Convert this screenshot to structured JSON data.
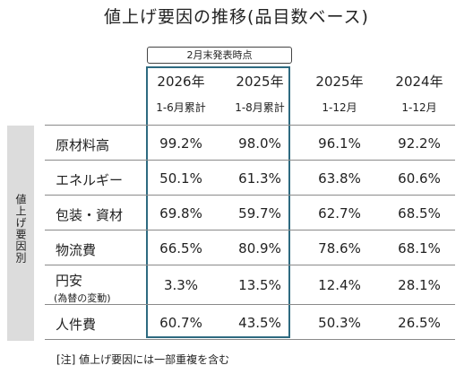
{
  "title": "値上げ要因の推移(品目数ベース)",
  "tag": "2月末発表時点",
  "columns": [
    {
      "year": "2026年",
      "period": "1-6月累計"
    },
    {
      "year": "2025年",
      "period": "1-8月累計"
    },
    {
      "year": "2025年",
      "period": "1-12月"
    },
    {
      "year": "2024年",
      "period": "1-12月"
    }
  ],
  "side_label": "値上げ要因別",
  "rows": [
    {
      "label": "原材料高",
      "values": [
        "99.2%",
        "98.0%",
        "96.1%",
        "92.2%"
      ]
    },
    {
      "label": "エネルギー",
      "values": [
        "50.1%",
        "61.3%",
        "63.8%",
        "60.6%"
      ]
    },
    {
      "label": "包装・資材",
      "values": [
        "69.8%",
        "59.7%",
        "62.7%",
        "68.5%"
      ]
    },
    {
      "label": "物流費",
      "values": [
        "66.5%",
        "80.9%",
        "78.6%",
        "68.1%"
      ]
    },
    {
      "label": "円安",
      "sublabel": "(為替の変動)",
      "values": [
        "3.3%",
        "13.5%",
        "12.4%",
        "28.1%"
      ]
    },
    {
      "label": "人件費",
      "values": [
        "60.7%",
        "43.5%",
        "50.3%",
        "26.5%"
      ]
    }
  ],
  "note": "[注] 値上げ要因には一部重複を含む",
  "colors": {
    "highlight_border": "#2e6a80",
    "sidebar_bg": "#dcdcdc"
  }
}
